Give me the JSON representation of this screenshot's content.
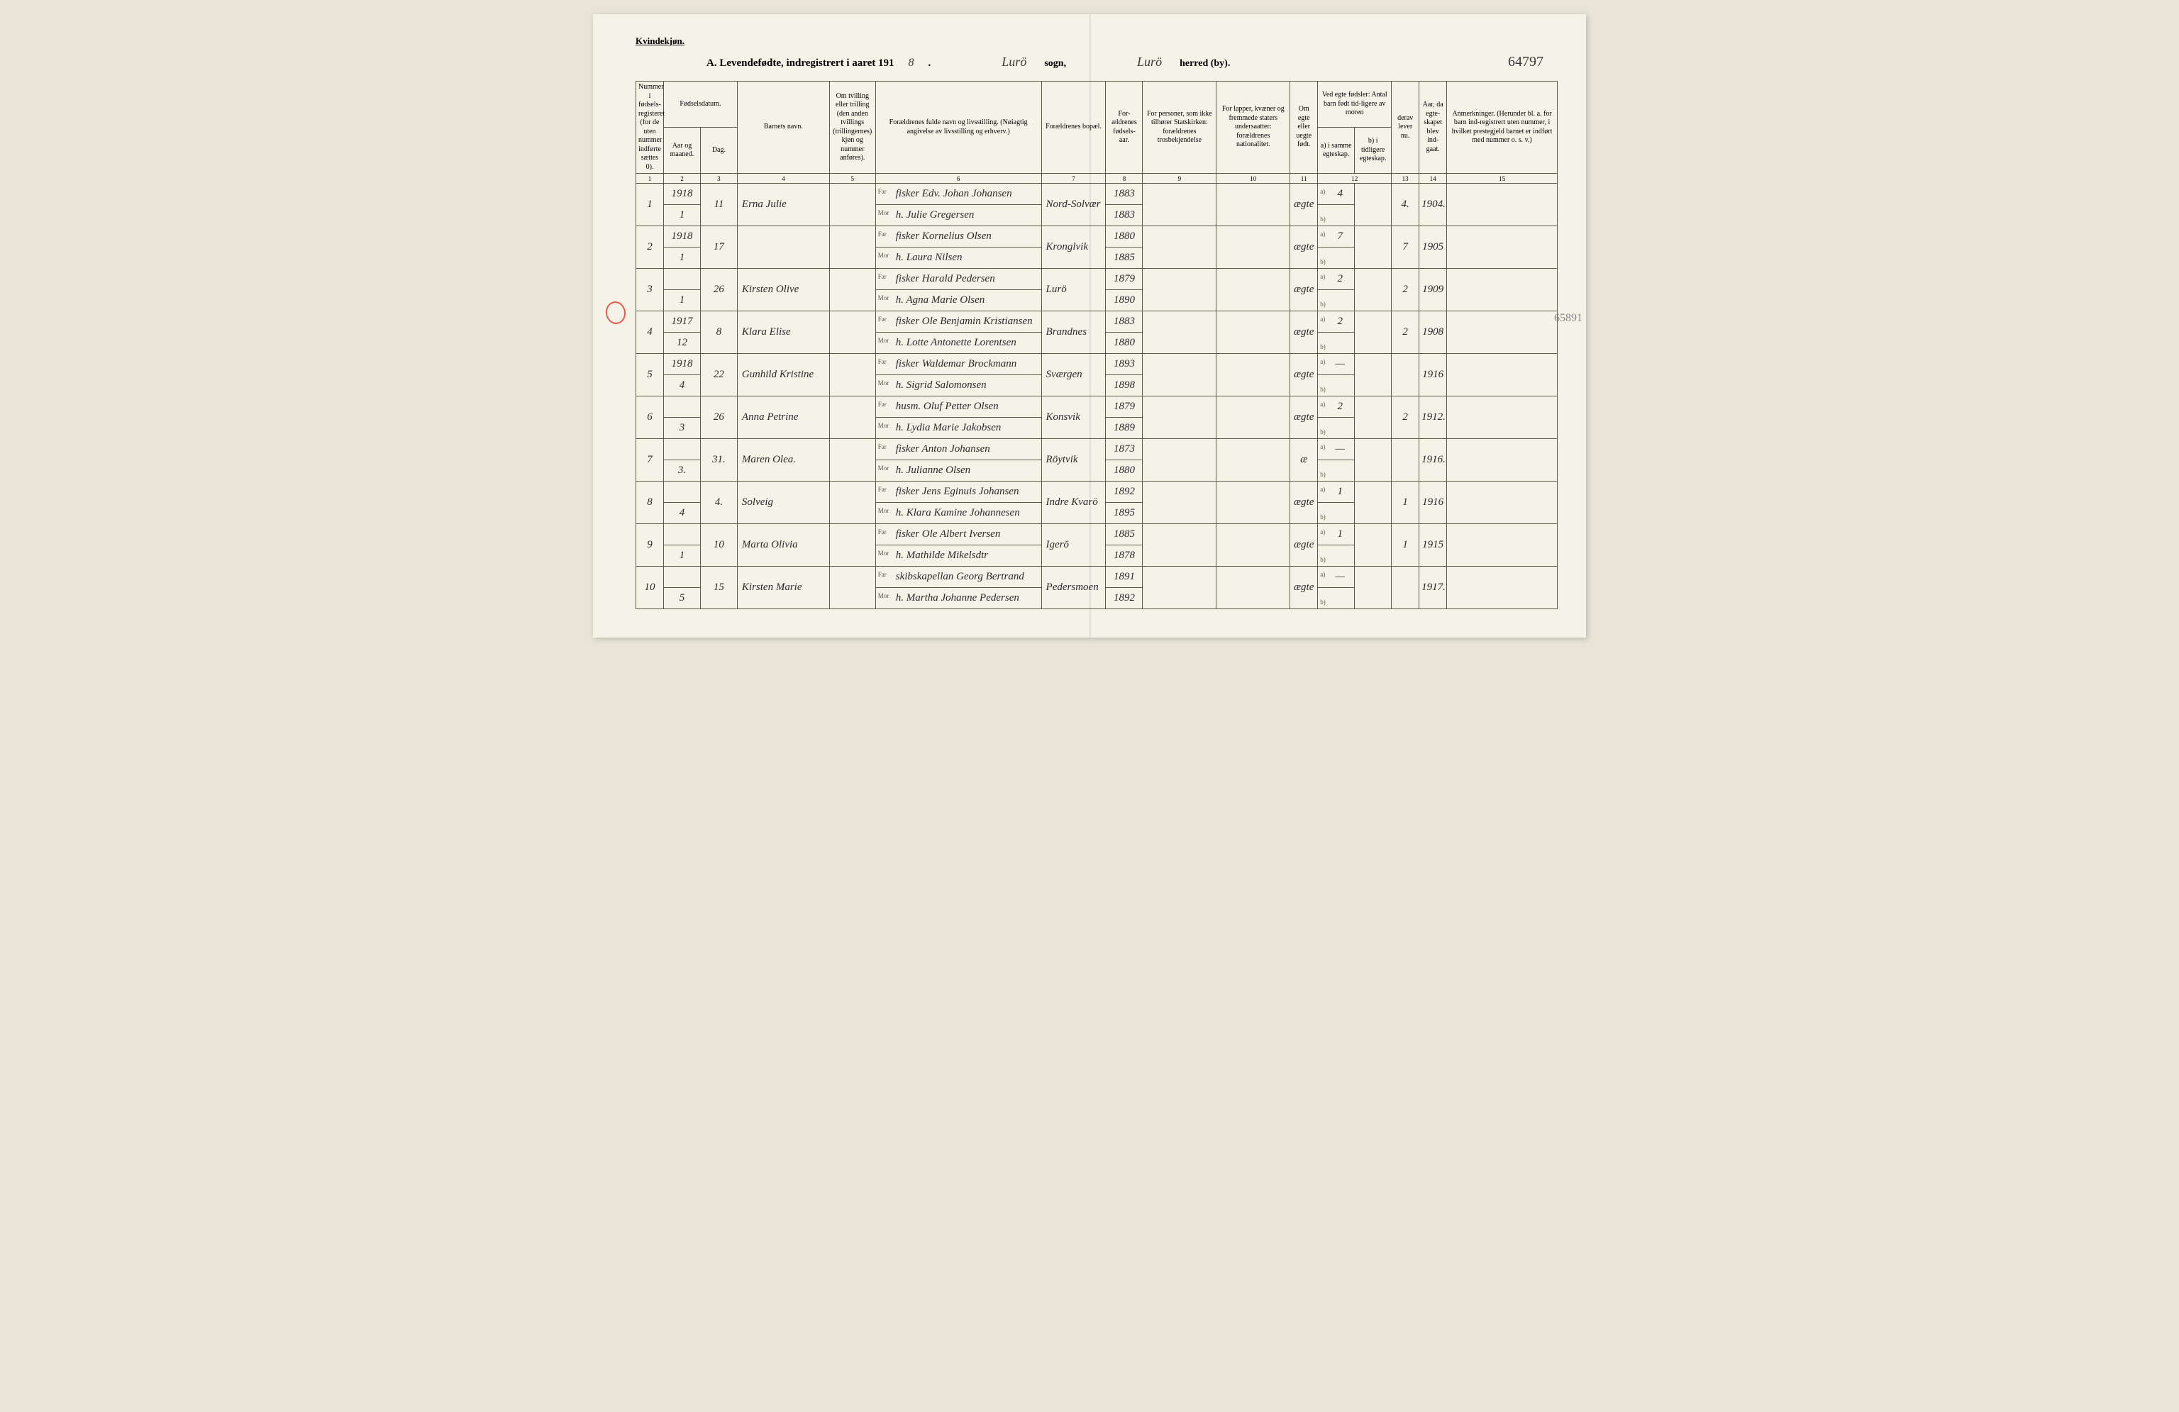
{
  "header": {
    "gender": "Kvindekjøn.",
    "title": "A. Levendefødte, indregistrert i aaret 191",
    "year_suffix": "8",
    "sogn": "Lurö",
    "sogn_label": "sogn,",
    "herred": "Lurö",
    "herred_label": "herred (by).",
    "ref_number": "64797"
  },
  "side_note": "65891",
  "columns": {
    "c1": "Nummer i fødsels-registeret (for de uten nummer indførte sættes 0).",
    "c2": "Fødselsdatum.",
    "c2a": "Aar og maaned.",
    "c2b": "Dag.",
    "c4": "Barnets navn.",
    "c5": "Om tvilling eller trilling (den anden tvillings (trillingernes) kjøn og nummer anføres).",
    "c6": "Forældrenes fulde navn og livsstilling. (Nøiagtig angivelse av livsstilling og erhverv.)",
    "c7": "Forældrenes bopæl.",
    "c8": "For-ældrenes fødsels-aar.",
    "c9": "For personer, som ikke tilhører Statskirken: forældrenes trosbekjendelse",
    "c10": "For lapper, kvæner og fremmede staters undersaatter: forældrenes nationalitet.",
    "c11": "Om egte eller uegte født.",
    "c12": "Ved egte fødsler: Antal barn født tid-ligere av moren",
    "c12a": "a) i samme egteskap.",
    "c12b": "b) i tidligere egteskap.",
    "c13": "derav lever nu.",
    "c14": "Aar, da egte-skapet blev ind-gaat.",
    "c15": "Anmerkninger. (Herunder bl. a. for barn ind-registrert uten nummer, i hvilket prestegjeld barnet er indført med nummer o. s. v.)"
  },
  "colnums": [
    "1",
    "2",
    "3",
    "4",
    "5",
    "6",
    "7",
    "8",
    "9",
    "10",
    "11",
    "12",
    "13",
    "14",
    "15"
  ],
  "rows": [
    {
      "num": "1",
      "year": "1918",
      "month": "1",
      "day": "11",
      "name": "Erna Julie",
      "far": "fisker Edv. Johan Johansen",
      "mor": "h. Julie Gregersen",
      "bopel": "Nord-Solvær",
      "faar_f": "1883",
      "faar_m": "1883",
      "egte": "ægte",
      "tidl_a": "4",
      "lever": "4.",
      "ind": "1904."
    },
    {
      "num": "2",
      "year": "1918",
      "month": "1",
      "day": "17",
      "name": "",
      "far": "fisker Kornelius Olsen",
      "mor": "h. Laura Nilsen",
      "bopel": "Kronglvik",
      "faar_f": "1880",
      "faar_m": "1885",
      "egte": "ægte",
      "tidl_a": "7",
      "lever": "7",
      "ind": "1905"
    },
    {
      "num": "3",
      "year": "",
      "month": "1",
      "day": "26",
      "name": "Kirsten Olive",
      "far": "fisker Harald Pedersen",
      "mor": "h. Agna Marie Olsen",
      "bopel": "Lurö",
      "faar_f": "1879",
      "faar_m": "1890",
      "egte": "ægte",
      "tidl_a": "2",
      "lever": "2",
      "ind": "1909"
    },
    {
      "num": "4",
      "year": "1917",
      "month": "12",
      "day": "8",
      "name": "Klara Elise",
      "far": "fisker Ole Benjamin Kristiansen",
      "mor": "h. Lotte Antonette Lorentsen",
      "bopel": "Brandnes",
      "faar_f": "1883",
      "faar_m": "1880",
      "egte": "ægte",
      "tidl_a": "2",
      "lever": "2",
      "ind": "1908"
    },
    {
      "num": "5",
      "year": "1918",
      "month": "4",
      "day": "22",
      "name": "Gunhild Kristine",
      "far": "fisker Waldemar Brockmann",
      "mor": "h. Sigrid Salomonsen",
      "bopel": "Sværgen",
      "faar_f": "1893",
      "faar_m": "1898",
      "egte": "ægte",
      "tidl_a": "—",
      "lever": "",
      "ind": "1916"
    },
    {
      "num": "6",
      "year": "",
      "month": "3",
      "day": "26",
      "name": "Anna Petrine",
      "far": "husm. Oluf Petter Olsen",
      "mor": "h. Lydia Marie Jakobsen",
      "bopel": "Konsvik",
      "faar_f": "1879",
      "faar_m": "1889",
      "egte": "ægte",
      "tidl_a": "2",
      "lever": "2",
      "ind": "1912."
    },
    {
      "num": "7",
      "year": "",
      "month": "3.",
      "day": "31.",
      "name": "Maren Olea.",
      "far": "fisker Anton Johansen",
      "mor": "h. Julianne Olsen",
      "bopel": "Röytvik",
      "faar_f": "1873",
      "faar_m": "1880",
      "egte": "æ",
      "tidl_a": "—",
      "lever": "",
      "ind": "1916."
    },
    {
      "num": "8",
      "year": "",
      "month": "4",
      "day": "4.",
      "name": "Solveig",
      "far": "fisker Jens Eginuis Johansen",
      "mor": "h. Klara Kamine Johannesen",
      "bopel": "Indre Kvarö",
      "faar_f": "1892",
      "faar_m": "1895",
      "egte": "ægte",
      "tidl_a": "1",
      "lever": "1",
      "ind": "1916"
    },
    {
      "num": "9",
      "year": "",
      "month": "1",
      "day": "10",
      "name": "Marta Olivia",
      "far": "fisker Ole Albert Iversen",
      "mor": "h. Mathilde Mikelsdtr",
      "bopel": "Igerö",
      "faar_f": "1885",
      "faar_m": "1878",
      "egte": "ægte",
      "tidl_a": "1",
      "lever": "1",
      "ind": "1915"
    },
    {
      "num": "10",
      "year": "",
      "month": "5",
      "day": "15",
      "name": "Kirsten Marie",
      "far": "skibskapellan Georg Bertrand",
      "mor": "h. Martha Johanne Pedersen",
      "bopel": "Pedersmoen",
      "faar_f": "1891",
      "faar_m": "1892",
      "egte": "ægte",
      "tidl_a": "—",
      "lever": "",
      "ind": "1917."
    }
  ]
}
